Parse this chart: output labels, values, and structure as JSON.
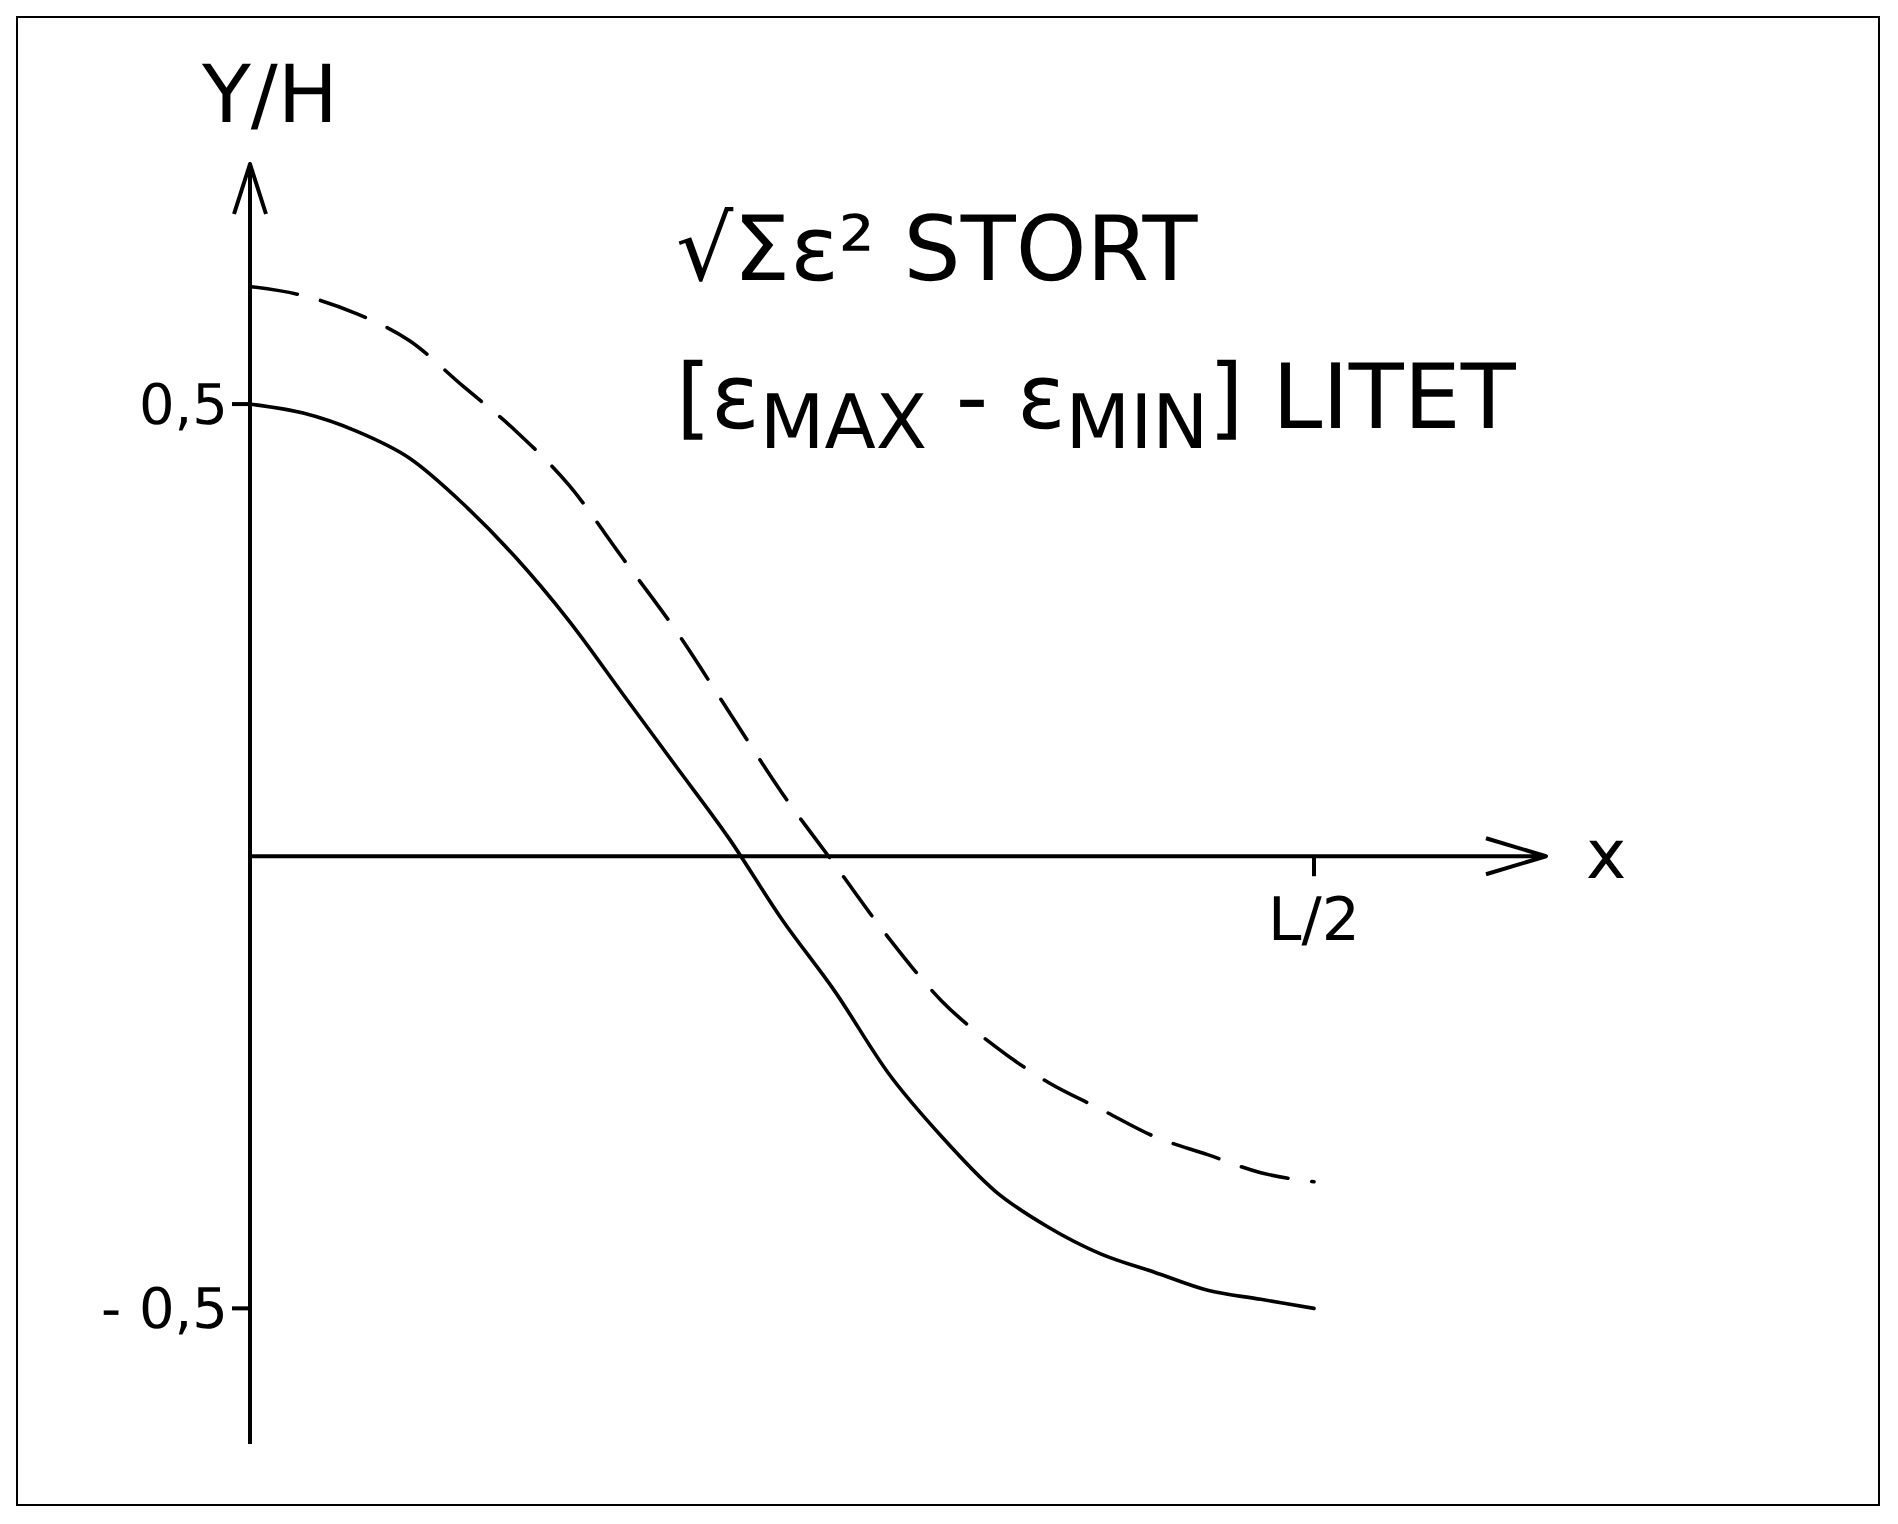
{
  "chart_data": {
    "type": "line",
    "xlabel": "x",
    "ylabel": "Y/H",
    "annotations": [
      "√Σε² STORT",
      "[ε$_{MAX}$ - ε$_{MIN}$] LITET"
    ],
    "categories": [
      null,
      null,
      null,
      null,
      null,
      null,
      null,
      null,
      null,
      null,
      null,
      null,
      null,
      null,
      null,
      null,
      null,
      null,
      null,
      null,
      "L/2"
    ],
    "series": [
      {
        "color": "#000000",
        "line_style": "solid",
        "values": [
          0.5,
          0.49,
          0.47,
          0.44,
          0.39,
          0.33,
          0.26,
          0.18,
          0.1,
          0.02,
          -0.07,
          -0.15,
          -0.24,
          -0.31,
          -0.37,
          -0.41,
          -0.44,
          -0.46,
          -0.48,
          -0.49,
          -0.5
        ]
      },
      {
        "color": "#000000",
        "line_style": "dashed",
        "values": [
          0.63,
          0.62,
          0.6,
          0.57,
          0.52,
          0.47,
          0.41,
          0.33,
          0.25,
          0.16,
          0.07,
          -0.01,
          -0.09,
          -0.16,
          -0.21,
          -0.25,
          -0.28,
          -0.31,
          -0.33,
          -0.35,
          -0.36
        ]
      }
    ],
    "ylim": [
      -0.65,
      0.75
    ],
    "yticks": [
      {
        "value": 0.5,
        "label": "0,5"
      },
      {
        "value": -0.5,
        "label": "- 0,5"
      }
    ],
    "marker": "none"
  }
}
